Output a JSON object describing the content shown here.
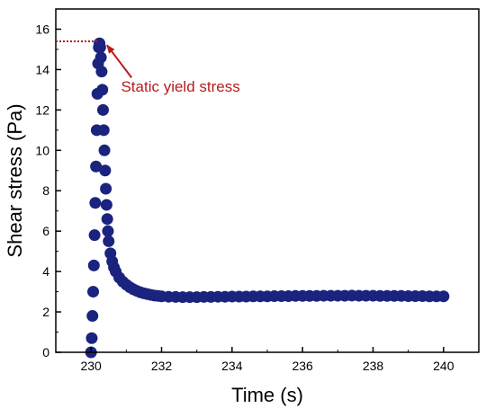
{
  "chart_data": {
    "type": "scatter",
    "xlabel": "Time (s)",
    "ylabel": "Shear stress (Pa)",
    "xlim": [
      229,
      241
    ],
    "ylim": [
      0,
      17
    ],
    "x_ticks": [
      230,
      232,
      234,
      236,
      238,
      240
    ],
    "y_ticks": [
      0,
      2,
      4,
      6,
      8,
      10,
      12,
      14,
      16
    ],
    "grid": false,
    "series": [
      {
        "color": "#1a237e",
        "marker": "circle",
        "points": [
          [
            230.0,
            0.0
          ],
          [
            230.02,
            0.7
          ],
          [
            230.04,
            1.8
          ],
          [
            230.06,
            3.0
          ],
          [
            230.08,
            4.3
          ],
          [
            230.1,
            5.8
          ],
          [
            230.12,
            7.4
          ],
          [
            230.14,
            9.2
          ],
          [
            230.16,
            11.0
          ],
          [
            230.18,
            12.8
          ],
          [
            230.2,
            14.3
          ],
          [
            230.22,
            15.1
          ],
          [
            230.24,
            15.3
          ],
          [
            230.26,
            15.1
          ],
          [
            230.28,
            14.6
          ],
          [
            230.3,
            13.9
          ],
          [
            230.32,
            13.0
          ],
          [
            230.34,
            12.0
          ],
          [
            230.36,
            11.0
          ],
          [
            230.38,
            10.0
          ],
          [
            230.4,
            9.0
          ],
          [
            230.42,
            8.1
          ],
          [
            230.44,
            7.3
          ],
          [
            230.46,
            6.6
          ],
          [
            230.48,
            6.0
          ],
          [
            230.5,
            5.5
          ],
          [
            230.55,
            4.9
          ],
          [
            230.6,
            4.5
          ],
          [
            230.65,
            4.2
          ],
          [
            230.7,
            4.0
          ],
          [
            230.8,
            3.7
          ],
          [
            230.9,
            3.5
          ],
          [
            231.0,
            3.35
          ],
          [
            231.1,
            3.22
          ],
          [
            231.2,
            3.12
          ],
          [
            231.3,
            3.04
          ],
          [
            231.4,
            2.97
          ],
          [
            231.5,
            2.92
          ],
          [
            231.6,
            2.88
          ],
          [
            231.7,
            2.84
          ],
          [
            231.8,
            2.81
          ],
          [
            231.9,
            2.79
          ],
          [
            232.0,
            2.77
          ],
          [
            232.2,
            2.75
          ],
          [
            232.4,
            2.74
          ],
          [
            232.6,
            2.73
          ],
          [
            232.8,
            2.73
          ],
          [
            233.0,
            2.73
          ],
          [
            233.2,
            2.74
          ],
          [
            233.4,
            2.74
          ],
          [
            233.6,
            2.75
          ],
          [
            233.8,
            2.75
          ],
          [
            234.0,
            2.76
          ],
          [
            234.2,
            2.76
          ],
          [
            234.4,
            2.76
          ],
          [
            234.6,
            2.77
          ],
          [
            234.8,
            2.77
          ],
          [
            235.0,
            2.77
          ],
          [
            235.2,
            2.78
          ],
          [
            235.4,
            2.78
          ],
          [
            235.6,
            2.78
          ],
          [
            235.8,
            2.79
          ],
          [
            236.0,
            2.79
          ],
          [
            236.2,
            2.79
          ],
          [
            236.4,
            2.79
          ],
          [
            236.6,
            2.8
          ],
          [
            236.8,
            2.8
          ],
          [
            237.0,
            2.8
          ],
          [
            237.2,
            2.8
          ],
          [
            237.4,
            2.81
          ],
          [
            237.6,
            2.8
          ],
          [
            237.8,
            2.8
          ],
          [
            238.0,
            2.8
          ],
          [
            238.2,
            2.79
          ],
          [
            238.4,
            2.79
          ],
          [
            238.6,
            2.79
          ],
          [
            238.8,
            2.79
          ],
          [
            239.0,
            2.78
          ],
          [
            239.2,
            2.78
          ],
          [
            239.4,
            2.78
          ],
          [
            239.6,
            2.77
          ],
          [
            239.8,
            2.77
          ],
          [
            240.0,
            2.77
          ]
        ]
      }
    ],
    "annotations": [
      {
        "text": "Static yield stress",
        "color": "#b71c1c",
        "reference_line": {
          "y": 15.4,
          "x_from": 229,
          "x_to": 230.2
        },
        "arrow_to": {
          "x": 230.4,
          "y": 15.3
        }
      }
    ]
  }
}
